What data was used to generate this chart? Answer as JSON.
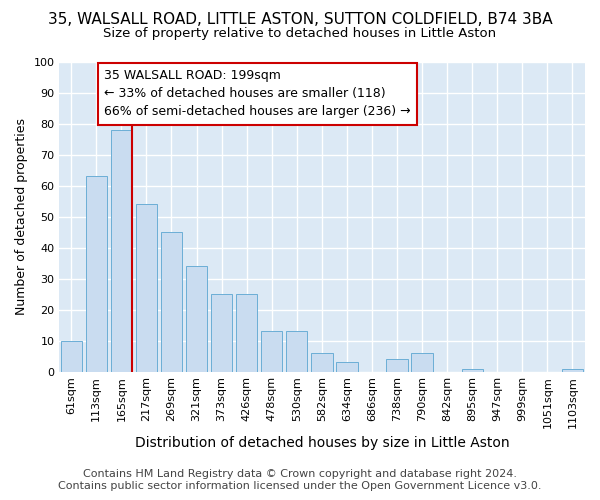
{
  "title": "35, WALSALL ROAD, LITTLE ASTON, SUTTON COLDFIELD, B74 3BA",
  "subtitle": "Size of property relative to detached houses in Little Aston",
  "xlabel": "Distribution of detached houses by size in Little Aston",
  "ylabel": "Number of detached properties",
  "footer_line1": "Contains HM Land Registry data © Crown copyright and database right 2024.",
  "footer_line2": "Contains public sector information licensed under the Open Government Licence v3.0.",
  "categories": [
    "61sqm",
    "113sqm",
    "165sqm",
    "217sqm",
    "269sqm",
    "321sqm",
    "373sqm",
    "426sqm",
    "478sqm",
    "530sqm",
    "582sqm",
    "634sqm",
    "686sqm",
    "738sqm",
    "790sqm",
    "842sqm",
    "895sqm",
    "947sqm",
    "999sqm",
    "1051sqm",
    "1103sqm"
  ],
  "values": [
    10,
    63,
    78,
    54,
    45,
    34,
    25,
    25,
    13,
    13,
    6,
    3,
    0,
    4,
    6,
    0,
    1,
    0,
    0,
    0,
    1
  ],
  "bar_color": "#c9dcf0",
  "bar_edge_color": "#6baed6",
  "vline_x": 2.42,
  "annotation_text": "35 WALSALL ROAD: 199sqm\n← 33% of detached houses are smaller (118)\n66% of semi-detached houses are larger (236) →",
  "annotation_box_color": "#ffffff",
  "annotation_box_edge_color": "#cc0000",
  "vline_color": "#cc0000",
  "ylim": [
    0,
    100
  ],
  "background_color": "#ffffff",
  "plot_bg_color": "#dce9f5",
  "grid_color": "#ffffff",
  "title_fontsize": 11,
  "subtitle_fontsize": 9.5,
  "xlabel_fontsize": 10,
  "ylabel_fontsize": 9,
  "tick_fontsize": 8,
  "annotation_fontsize": 9,
  "footer_fontsize": 8
}
